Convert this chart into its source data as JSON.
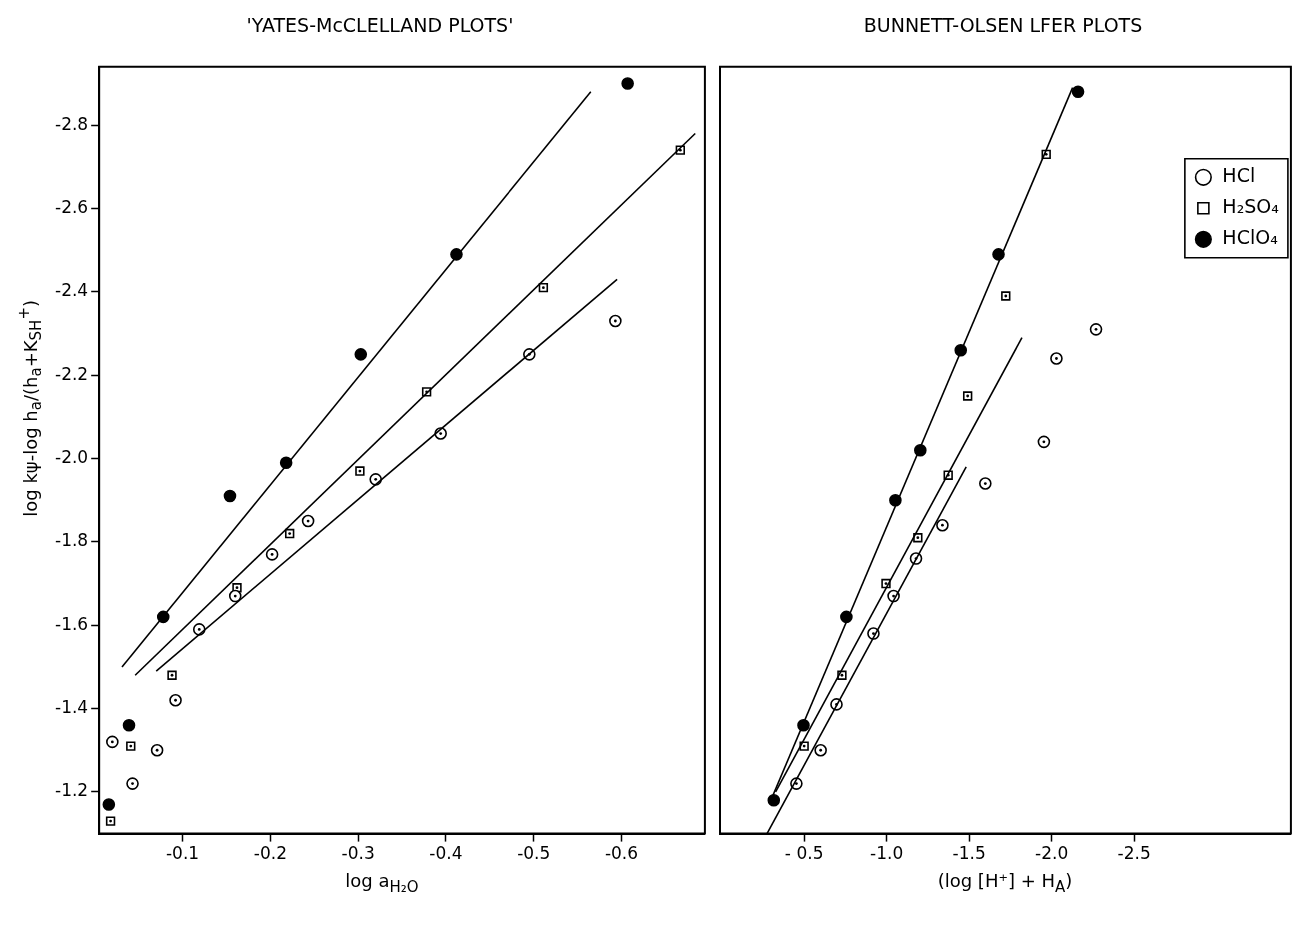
{
  "chart_data": [
    {
      "type": "scatter",
      "title": "'YATES-McCLELLAND PLOTS'",
      "xlabel": "log a$_{H₂O}$",
      "ylabel": "log kψ-log h$_{a}$/(h$_{a}$+K$_{SH}$$^{+}$)",
      "xlim": [
        -0.005,
        -0.695
      ],
      "ylim": [
        -1.1,
        -2.94
      ],
      "xticks": [
        -0.1,
        -0.2,
        -0.3,
        -0.4,
        -0.5,
        -0.6
      ],
      "yticks": [
        -1.2,
        -1.4,
        -1.6,
        -1.8,
        {
          "value": -2,
          "label": "-2.0"
        },
        -2.2,
        -2.4,
        -2.6,
        -2.8
      ],
      "grid": false,
      "series": [
        {
          "type": "line",
          "color": "#000000",
          "marker": "none",
          "x": [
            -0.031,
            -0.565
          ],
          "values": [
            -1.5,
            -2.88
          ]
        },
        {
          "type": "line",
          "color": "#000000",
          "marker": "none",
          "x": [
            -0.046,
            -0.684
          ],
          "values": [
            -1.48,
            -2.78
          ]
        },
        {
          "type": "line",
          "color": "#000000",
          "marker": "none",
          "x": [
            -0.07,
            -0.595
          ],
          "values": [
            -1.49,
            -2.43
          ]
        },
        {
          "type": "scatter",
          "color": "#ffffff",
          "marker": "circle",
          "x": [
            -0.02,
            -0.043,
            -0.071,
            -0.092,
            -0.119,
            -0.16,
            -0.202,
            -0.243,
            -0.32,
            -0.394,
            -0.495,
            -0.593
          ],
          "values": [
            -1.32,
            -1.22,
            -1.3,
            -1.42,
            -1.59,
            -1.67,
            -1.77,
            -1.85,
            -1.95,
            -2.06,
            -2.25,
            -2.33
          ]
        },
        {
          "type": "scatter",
          "color": "#ffffff",
          "marker": "square",
          "x": [
            -0.018,
            -0.041,
            -0.088,
            -0.162,
            -0.222,
            -0.302,
            -0.378,
            -0.511,
            -0.667
          ],
          "values": [
            -1.13,
            -1.31,
            -1.48,
            -1.69,
            -1.82,
            -1.97,
            -2.16,
            -2.41,
            -2.74
          ]
        },
        {
          "type": "scatter",
          "color": "#000000",
          "marker": "circle",
          "x": [
            -0.016,
            -0.039,
            -0.078,
            -0.154,
            -0.218,
            -0.303,
            -0.412,
            -0.607
          ],
          "values": [
            -1.17,
            -1.36,
            -1.62,
            -1.91,
            -1.99,
            -2.25,
            -2.49,
            -2.9
          ]
        }
      ]
    },
    {
      "type": "scatter",
      "title": "BUNNETT-OLSEN LFER PLOTS",
      "xlabel": "(log [H⁺] + H$_{A}$)",
      "xlim": [
        0.01,
        -3.45
      ],
      "ylim": [
        -1.1,
        -2.94
      ],
      "xticks": [
        {
          "value": -0.5,
          "label": "- 0.5"
        },
        {
          "value": -1,
          "label": "-1.0"
        },
        -1.5,
        {
          "value": -2,
          "label": "-2.0"
        },
        -2.5
      ],
      "tick_labels": "x",
      "grid": false,
      "legend": "top right",
      "series": [
        {
          "type": "line",
          "color": "#000000",
          "marker": "none",
          "x": [
            -0.309,
            -2.127
          ],
          "values": [
            -1.19,
            -2.89
          ]
        },
        {
          "type": "line",
          "color": "#000000",
          "marker": "none",
          "x": [
            -0.327,
            -1.82
          ],
          "values": [
            -1.2,
            -2.29
          ]
        },
        {
          "type": "line",
          "color": "#000000",
          "marker": "none",
          "x": [
            -0.275,
            -1.482
          ],
          "values": [
            -1.1,
            -1.98
          ]
        },
        {
          "name": "HCl",
          "type": "scatter",
          "color": "#ffffff",
          "marker": "circle",
          "x": [
            -0.453,
            -0.6,
            -0.696,
            -0.92,
            -1.042,
            -1.178,
            -1.338,
            -1.598,
            -1.953,
            -2.029,
            -2.269
          ],
          "values": [
            -1.22,
            -1.3,
            -1.41,
            -1.58,
            -1.67,
            -1.76,
            -1.84,
            -1.94,
            -2.04,
            -2.24,
            -2.31
          ]
        },
        {
          "name": "H₂SO₄",
          "type": "scatter",
          "color": "#ffffff",
          "marker": "square",
          "x": [
            -0.5,
            -0.729,
            -0.996,
            -1.189,
            -1.373,
            -1.491,
            -1.722,
            -1.967
          ],
          "values": [
            -1.31,
            -1.48,
            -1.7,
            -1.81,
            -1.96,
            -2.15,
            -2.39,
            -2.73
          ]
        },
        {
          "name": "HClO₄",
          "type": "scatter",
          "color": "#000000",
          "marker": "circle",
          "x": [
            -0.316,
            -0.496,
            -0.756,
            -1.053,
            -1.204,
            -1.449,
            -1.678,
            -2.16
          ],
          "values": [
            -1.18,
            -1.36,
            -1.62,
            -1.9,
            -2.02,
            -2.26,
            -2.49,
            -2.88
          ]
        }
      ]
    }
  ]
}
